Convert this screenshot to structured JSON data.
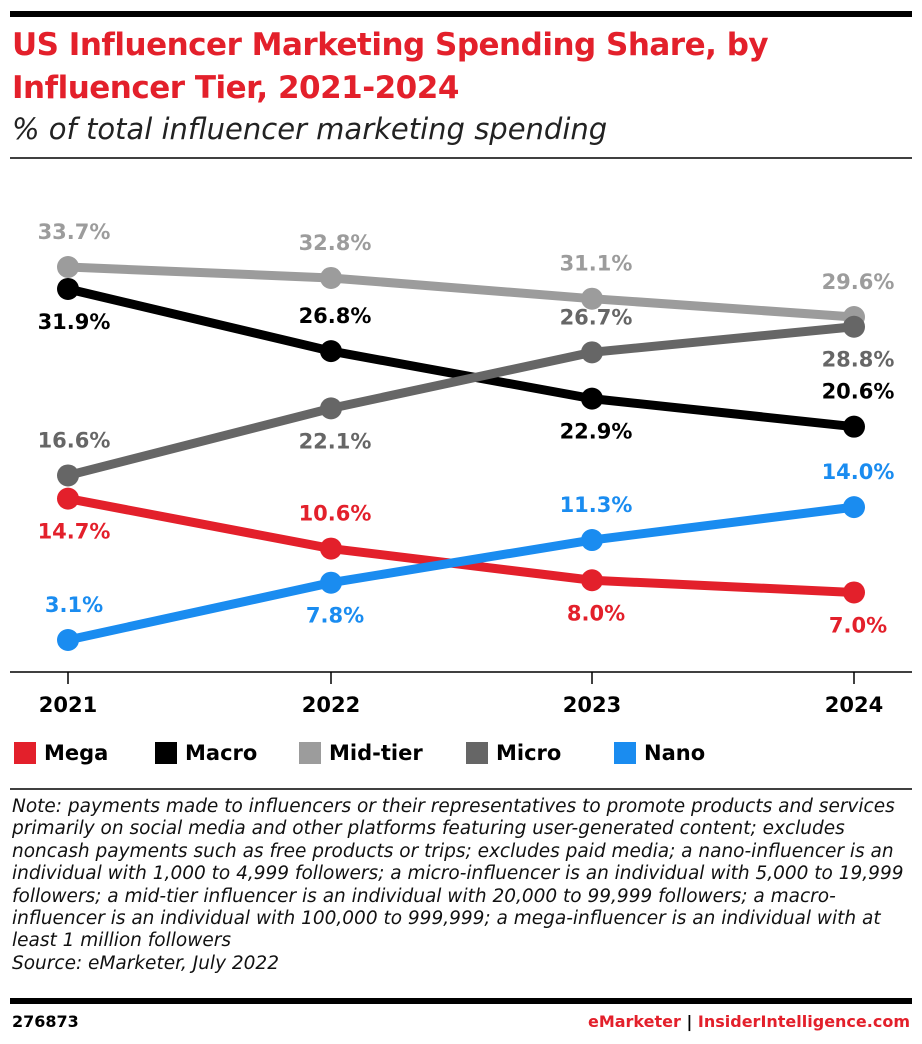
{
  "chart_data": {
    "type": "line",
    "title": "US Influencer Marketing Spending Share, by Influencer Tier, 2021-2024",
    "subtitle": "% of total influencer marketing spending",
    "categories": [
      "2021",
      "2022",
      "2023",
      "2024"
    ],
    "series": [
      {
        "name": "Mega",
        "color": "#e3202b",
        "values": [
          14.7,
          10.6,
          8.0,
          7.0
        ],
        "value_labels": [
          "14.7%",
          "10.6%",
          "8.0%",
          "7.0%"
        ]
      },
      {
        "name": "Macro",
        "color": "#000000",
        "values": [
          31.9,
          26.8,
          22.9,
          20.6
        ],
        "value_labels": [
          "31.9%",
          "26.8%",
          "22.9%",
          "20.6%"
        ]
      },
      {
        "name": "Mid-tier",
        "color": "#9c9c9c",
        "values": [
          33.7,
          32.8,
          31.1,
          29.6
        ],
        "value_labels": [
          "33.7%",
          "32.8%",
          "31.1%",
          "29.6%"
        ]
      },
      {
        "name": "Micro",
        "color": "#666666",
        "values": [
          16.6,
          22.1,
          26.7,
          28.8
        ],
        "value_labels": [
          "16.6%",
          "22.1%",
          "26.7%",
          "28.8%"
        ]
      },
      {
        "name": "Nano",
        "color": "#1a8cf0",
        "values": [
          3.1,
          7.8,
          11.3,
          14.0
        ],
        "value_labels": [
          "3.1%",
          "7.8%",
          "11.3%",
          "14.0%"
        ]
      }
    ],
    "note": "Note: payments made to influencers or their representatives to promote products and services primarily on social media and other platforms featuring user-generated content; excludes noncash payments such as free products or trips; excludes paid media; a nano-influencer is an individual with 1,000 to 4,999 followers; a micro-influencer is an individual with 5,000 to 19,999 followers; a mid-tier influencer is an individual with 20,000 to 99,999 followers; a macro-influencer is an individual with 100,000 to 999,999; a mega-influencer is an individual with at least 1 million followers",
    "source": "Source: eMarketer, July 2022",
    "chart_id": "276873",
    "footer_brand": "eMarketer",
    "footer_separator": "|",
    "footer_site": "InsiderIntelligence.com"
  }
}
